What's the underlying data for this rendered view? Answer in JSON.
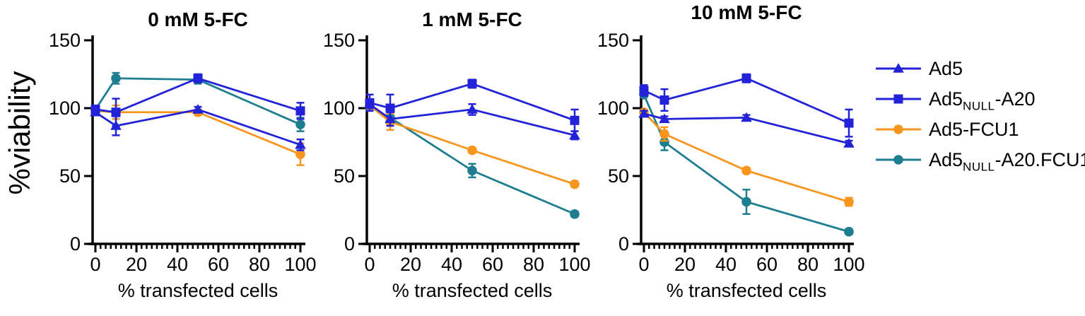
{
  "figure": {
    "background": "#ffffff",
    "ylabel": "%viability"
  },
  "colors": {
    "blue": "#2222d8",
    "orange": "#f8951d",
    "teal": "#1e7e90",
    "axis": "#000000"
  },
  "chart_data": [
    {
      "type": "line",
      "title": "0 mM 5-FC",
      "xlabel": "% transfected cells",
      "ylabel": "%viability",
      "x": [
        0,
        10,
        50,
        100
      ],
      "xlim": [
        0,
        100
      ],
      "ylim": [
        0,
        150
      ],
      "xticks": [
        0,
        20,
        40,
        60,
        80,
        100
      ],
      "minor_xtick_step": 2.5,
      "yticks": [
        0,
        50,
        100,
        150
      ],
      "grid": false,
      "legend_position": "right-of-last-panel",
      "series": [
        {
          "name": "Ad5",
          "marker": "triangle",
          "color": "#2222d8",
          "values": [
            97,
            87,
            99,
            73
          ],
          "errors": [
            2,
            7,
            2,
            4
          ]
        },
        {
          "name": "Ad5NULL-A20",
          "marker": "square",
          "color": "#2222d8",
          "values": [
            99,
            97,
            122,
            98
          ],
          "errors": [
            3,
            10,
            3,
            6
          ]
        },
        {
          "name": "Ad5-FCU1",
          "marker": "circle",
          "color": "#f8951d",
          "values": [
            98,
            97,
            97,
            66
          ],
          "errors": [
            2,
            5,
            2,
            8
          ]
        },
        {
          "name": "Ad5NULL-A20.FCU1",
          "marker": "circle",
          "color": "#1e7e90",
          "values": [
            99,
            122,
            121,
            88
          ],
          "errors": [
            2,
            4,
            3,
            5
          ]
        }
      ]
    },
    {
      "type": "line",
      "title": "1 mM 5-FC",
      "xlabel": "% transfected cells",
      "ylabel": "%viability",
      "x": [
        0,
        10,
        50,
        100
      ],
      "xlim": [
        0,
        100
      ],
      "ylim": [
        0,
        150
      ],
      "xticks": [
        0,
        20,
        40,
        60,
        80,
        100
      ],
      "minor_xtick_step": 2.5,
      "yticks": [
        0,
        50,
        100,
        150
      ],
      "grid": false,
      "series": [
        {
          "name": "Ad5",
          "marker": "triangle",
          "color": "#2222d8",
          "values": [
            103,
            92,
            99,
            80
          ],
          "errors": [
            3,
            5,
            4,
            3
          ]
        },
        {
          "name": "Ad5NULL-A20",
          "marker": "square",
          "color": "#2222d8",
          "values": [
            104,
            100,
            118,
            91
          ],
          "errors": [
            6,
            10,
            3,
            8
          ]
        },
        {
          "name": "Ad5-FCU1",
          "marker": "circle",
          "color": "#f8951d",
          "values": [
            102,
            90,
            69,
            44
          ],
          "errors": [
            2,
            6,
            2,
            2
          ]
        },
        {
          "name": "Ad5NULL-A20.FCU1",
          "marker": "circle",
          "color": "#1e7e90",
          "values": [
            101,
            93,
            54,
            22
          ],
          "errors": [
            2,
            6,
            5,
            2
          ]
        }
      ]
    },
    {
      "type": "line",
      "title": "10 mM 5-FC",
      "xlabel": "% transfected cells",
      "ylabel": "%viability",
      "x": [
        0,
        10,
        50,
        100
      ],
      "xlim": [
        0,
        100
      ],
      "ylim": [
        0,
        150
      ],
      "xticks": [
        0,
        20,
        40,
        60,
        80,
        100
      ],
      "minor_xtick_step": 2.5,
      "yticks": [
        0,
        50,
        100,
        150
      ],
      "grid": false,
      "series": [
        {
          "name": "Ad5",
          "marker": "triangle",
          "color": "#2222d8",
          "values": [
            96,
            92,
            93,
            74
          ],
          "errors": [
            2,
            2,
            2,
            2
          ]
        },
        {
          "name": "Ad5NULL-A20",
          "marker": "square",
          "color": "#2222d8",
          "values": [
            113,
            106,
            122,
            89
          ],
          "errors": [
            4,
            8,
            3,
            10
          ]
        },
        {
          "name": "Ad5-FCU1",
          "marker": "circle",
          "color": "#f8951d",
          "values": [
            97,
            81,
            54,
            31
          ],
          "errors": [
            2,
            5,
            2,
            3
          ]
        },
        {
          "name": "Ad5NULL-A20.FCU1",
          "marker": "circle",
          "color": "#1e7e90",
          "values": [
            110,
            75,
            31,
            9
          ],
          "errors": [
            2,
            6,
            9,
            2
          ]
        }
      ]
    }
  ],
  "legend": {
    "items": [
      {
        "pre": "Ad5",
        "sub": "",
        "post": "",
        "marker": "triangle",
        "color": "#2222d8"
      },
      {
        "pre": "Ad5",
        "sub": "NULL",
        "post": "-A20",
        "marker": "square",
        "color": "#2222d8"
      },
      {
        "pre": "Ad5-FCU1",
        "sub": "",
        "post": "",
        "marker": "circle",
        "color": "#f8951d"
      },
      {
        "pre": "Ad5",
        "sub": "NULL",
        "post": "-A20.FCU1",
        "marker": "circle",
        "color": "#1e7e90"
      }
    ]
  }
}
